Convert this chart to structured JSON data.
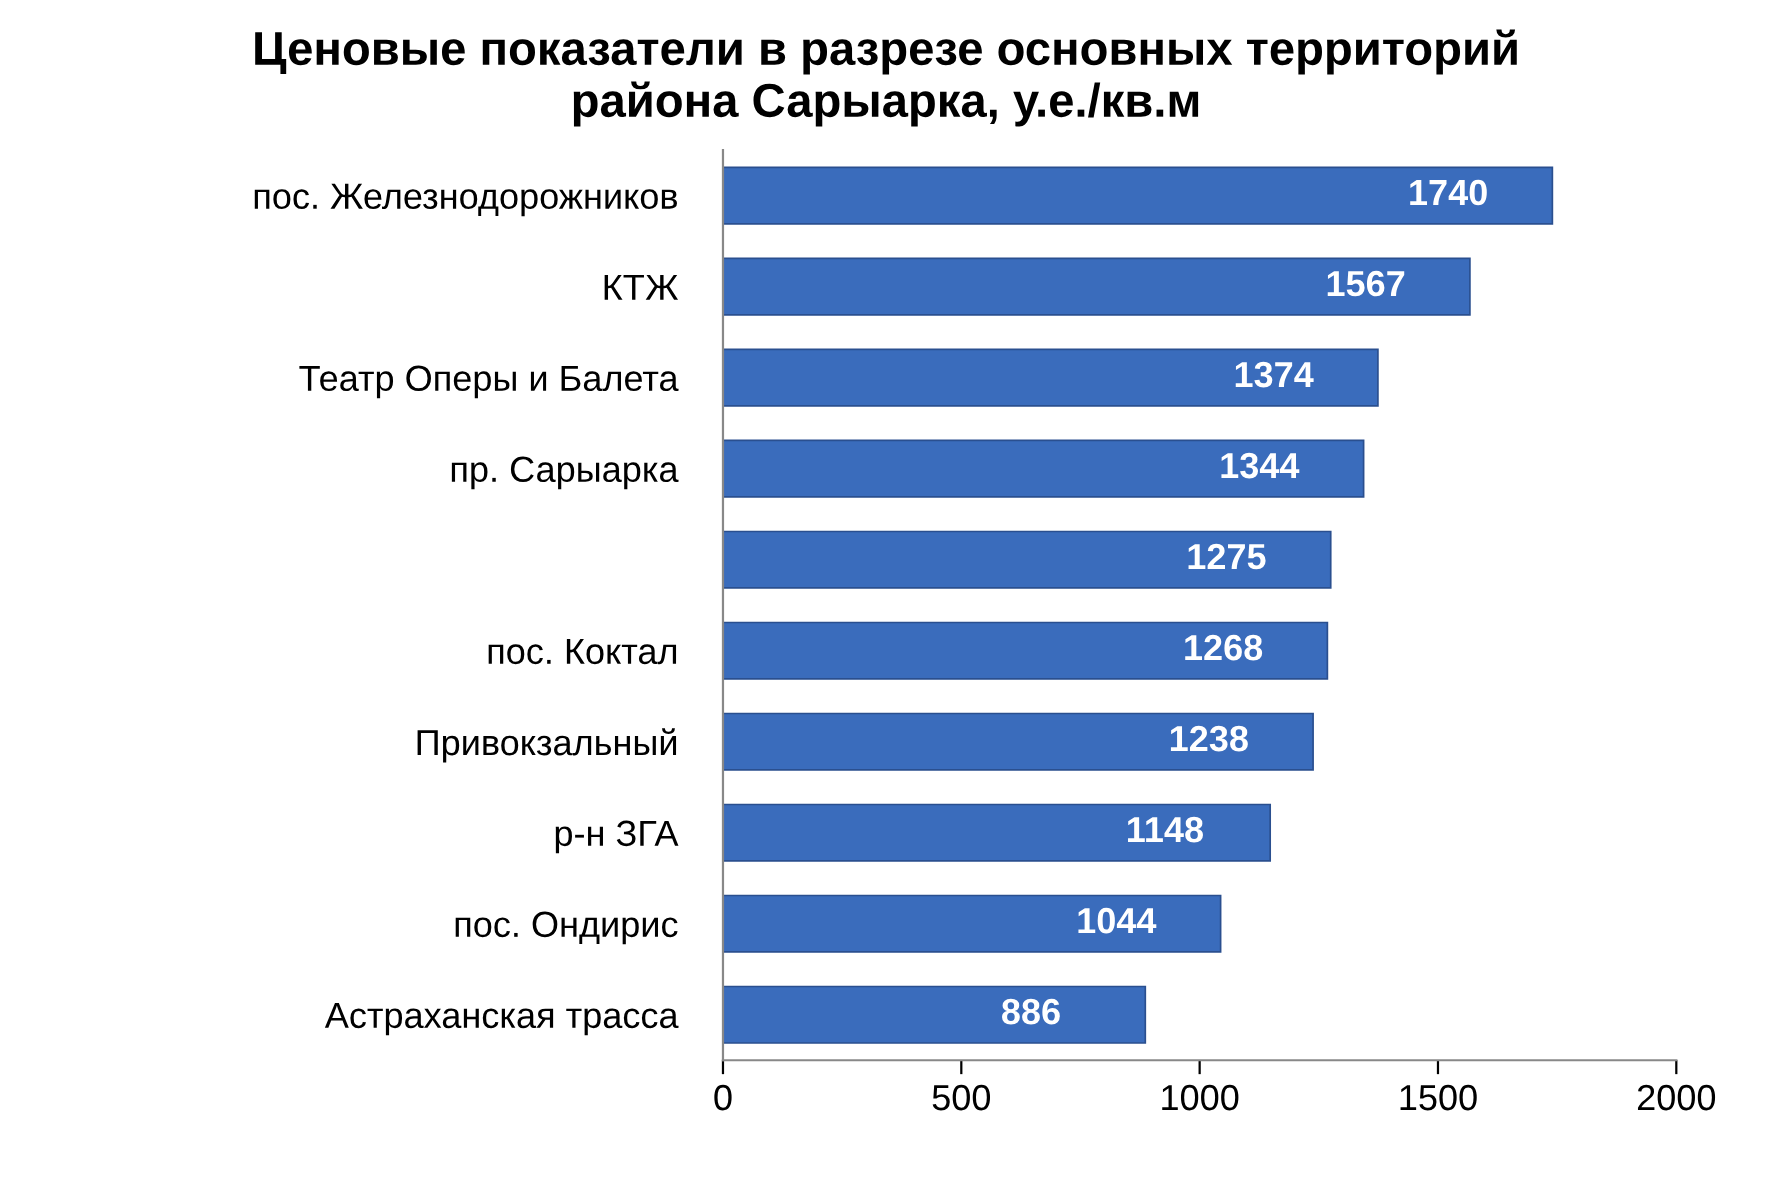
{
  "chart_data": {
    "type": "bar",
    "orientation": "horizontal",
    "title": "Ценовые показатели в разрезе основных территорий\nрайона Сарыарка, у.е./кв.м",
    "categories": [
      "пос. Железнодорожников",
      "КТЖ",
      "Театр Оперы и Балета",
      "пр. Сарыарка",
      null,
      "пос. Коктал",
      "Привокзальный",
      "р-н ЗГА",
      "пос. Ондирис",
      "Астраханская трасса"
    ],
    "values": [
      1740,
      1567,
      1374,
      1344,
      1275,
      1268,
      1238,
      1148,
      1044,
      886
    ],
    "color": "#3a6cbc",
    "data_labels": true,
    "xlim": [
      0,
      2000
    ],
    "xticks": [
      0,
      500,
      1000,
      1500,
      2000
    ],
    "grid": false
  }
}
